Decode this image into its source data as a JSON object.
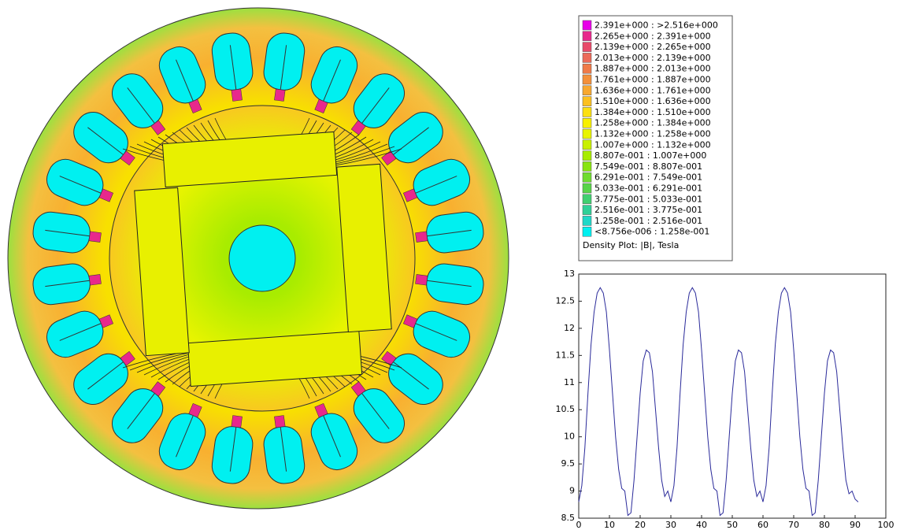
{
  "legend": {
    "entries": [
      {
        "color": "#e800e8",
        "label": "2.391e+000 : >2.516e+000"
      },
      {
        "color": "#e8288c",
        "label": "2.265e+000 : 2.391e+000"
      },
      {
        "color": "#e84a6a",
        "label": "2.139e+000 : 2.265e+000"
      },
      {
        "color": "#ec6a5a",
        "label": "2.013e+000 : 2.139e+000"
      },
      {
        "color": "#f07a48",
        "label": "1.887e+000 : 2.013e+000"
      },
      {
        "color": "#f4903a",
        "label": "1.761e+000 : 1.887e+000"
      },
      {
        "color": "#f8a830",
        "label": "1.636e+000 : 1.761e+000"
      },
      {
        "color": "#fcc020",
        "label": "1.510e+000 : 1.636e+000"
      },
      {
        "color": "#fce010",
        "label": "1.384e+000 : 1.510e+000"
      },
      {
        "color": "#f8f000",
        "label": "1.258e+000 : 1.384e+000"
      },
      {
        "color": "#e8f400",
        "label": "1.132e+000 : 1.258e+000"
      },
      {
        "color": "#c8f000",
        "label": "1.007e+000 : 1.132e+000"
      },
      {
        "color": "#a8ec00",
        "label": "8.807e-001 : 1.007e+000"
      },
      {
        "color": "#88e410",
        "label": "7.549e-001 : 8.807e-001"
      },
      {
        "color": "#70dc30",
        "label": "6.291e-001 : 7.549e-001"
      },
      {
        "color": "#58d448",
        "label": "5.033e-001 : 6.291e-001"
      },
      {
        "color": "#40d070",
        "label": "3.775e-001 : 5.033e-001"
      },
      {
        "color": "#30d098",
        "label": "2.516e-001 : 3.775e-001"
      },
      {
        "color": "#20d8c8",
        "label": "1.258e-001 : 2.516e-001"
      },
      {
        "color": "#00f0f0",
        "label": "<8.756e-006 : 1.258e-001"
      }
    ],
    "caption": "Density Plot: |B|, Tesla"
  },
  "chart_data": {
    "type": "line",
    "x": [
      0,
      1,
      2,
      3,
      4,
      5,
      6,
      7,
      8,
      9,
      10,
      11,
      12,
      13,
      14,
      15,
      16,
      17,
      18,
      19,
      20,
      21,
      22,
      23,
      24,
      25,
      26,
      27,
      28,
      29,
      30,
      31,
      32,
      33,
      34,
      35,
      36,
      37,
      38,
      39,
      40,
      41,
      42,
      43,
      44,
      45,
      46,
      47,
      48,
      49,
      50,
      51,
      52,
      53,
      54,
      55,
      56,
      57,
      58,
      59,
      60,
      61,
      62,
      63,
      64,
      65,
      66,
      67,
      68,
      69,
      70,
      71,
      72,
      73,
      74,
      75,
      76,
      77,
      78,
      79,
      80,
      81,
      82,
      83,
      84,
      85,
      86,
      87,
      88,
      89,
      90,
      91
    ],
    "series": [
      {
        "color": "#2a2a9a",
        "values": [
          8.8,
          9.1,
          9.8,
          10.8,
          11.7,
          12.3,
          12.65,
          12.75,
          12.65,
          12.3,
          11.6,
          10.8,
          10.0,
          9.4,
          9.05,
          9.0,
          8.55,
          8.6,
          9.2,
          10.0,
          10.8,
          11.4,
          11.6,
          11.55,
          11.2,
          10.5,
          9.8,
          9.2,
          8.9,
          9.0,
          8.8,
          9.1,
          9.8,
          10.8,
          11.7,
          12.3,
          12.65,
          12.75,
          12.65,
          12.3,
          11.6,
          10.8,
          10.0,
          9.4,
          9.05,
          9.0,
          8.55,
          8.6,
          9.2,
          10.0,
          10.8,
          11.4,
          11.6,
          11.55,
          11.2,
          10.5,
          9.8,
          9.2,
          8.9,
          9.0,
          8.8,
          9.1,
          9.8,
          10.8,
          11.7,
          12.3,
          12.65,
          12.75,
          12.65,
          12.3,
          11.6,
          10.8,
          10.0,
          9.4,
          9.05,
          9.0,
          8.55,
          8.6,
          9.2,
          10.0,
          10.8,
          11.4,
          11.6,
          11.55,
          11.2,
          10.5,
          9.8,
          9.2,
          8.95,
          9.0,
          8.85,
          8.8
        ]
      }
    ],
    "xlim": [
      0,
      100
    ],
    "xticks": [
      0,
      10,
      20,
      30,
      40,
      50,
      60,
      70,
      80,
      90,
      100
    ],
    "ylim": [
      8.5,
      13
    ],
    "yticks": [
      8.5,
      9,
      9.5,
      10,
      10.5,
      11,
      11.5,
      12,
      12.5,
      13
    ]
  }
}
